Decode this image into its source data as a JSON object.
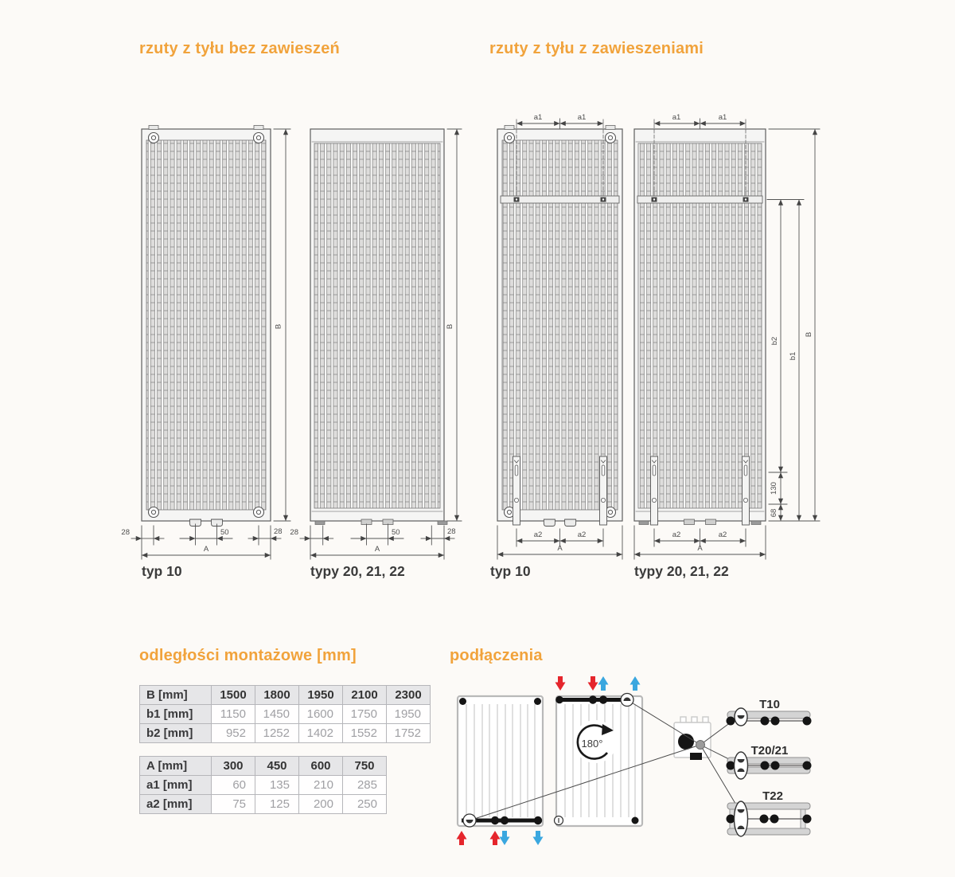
{
  "sections": {
    "top_left_heading": "rzuty z tyłu bez zawieszeń",
    "top_right_heading": "rzuty z tyłu z zawieszeniami",
    "tables_heading": "odległości montażowe [mm]",
    "connections_heading": "podłączenia"
  },
  "drawings": {
    "typ10_left_label": "typ 10",
    "typ20_left_label": "typy 20, 21, 22",
    "typ10_right_label": "typ 10",
    "typ20_right_label": "typy 20, 21, 22"
  },
  "dims": {
    "d28": "28",
    "d50": "50",
    "d130": "130",
    "d68": "68",
    "A": "A",
    "B": "B",
    "a1": "a1",
    "a2": "a2",
    "b1": "b1",
    "b2": "b2"
  },
  "tables": {
    "vertical": {
      "header": [
        "B [mm]",
        "1500",
        "1800",
        "1950",
        "2100",
        "2300"
      ],
      "rows": [
        [
          "b1 [mm]",
          "1150",
          "1450",
          "1600",
          "1750",
          "1950"
        ],
        [
          "b2 [mm]",
          "952",
          "1252",
          "1402",
          "1552",
          "1752"
        ]
      ]
    },
    "horizontal": {
      "header": [
        "A [mm]",
        "300",
        "450",
        "600",
        "750"
      ],
      "rows": [
        [
          "a1 [mm]",
          "60",
          "135",
          "210",
          "285"
        ],
        [
          "a2 [mm]",
          "75",
          "125",
          "200",
          "250"
        ]
      ]
    }
  },
  "connections": {
    "rotation": "180°",
    "t10": "T10",
    "t2021": "T20/21",
    "t22": "T22"
  },
  "colors": {
    "accent": "#f1a33c",
    "supply_red": "#e5252c",
    "return_blue": "#3aa7df",
    "line_dark": "#4d4d4d"
  }
}
